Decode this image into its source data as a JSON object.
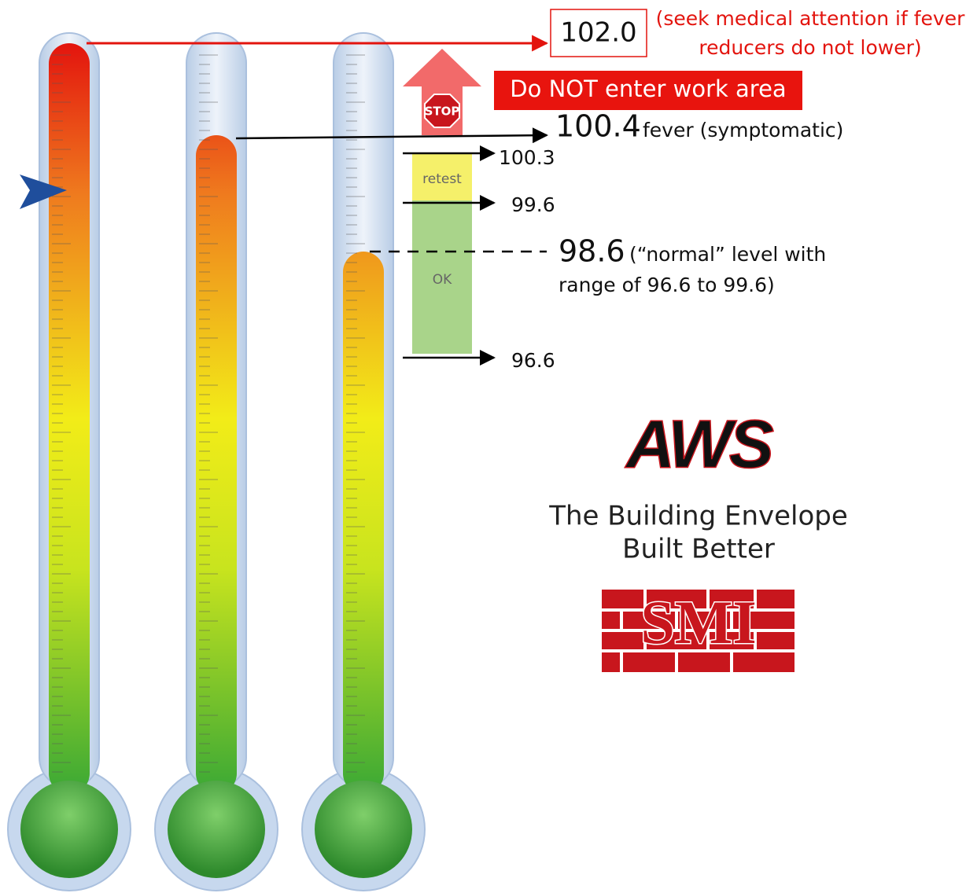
{
  "labels": {
    "high": "102.0",
    "high_note_1": "(seek medical attention if fever",
    "high_note_2": "reducers do not lower)",
    "warning": "Do NOT enter work area",
    "stop": "STOP",
    "fever": "100.4",
    "fever_note": "fever (symptomatic)",
    "retest_top": "100.3",
    "retest": "retest",
    "retest_bottom": "99.6",
    "normal": "98.6",
    "normal_note_1": "(“normal” level with",
    "normal_note_2": "range of 96.6 to 99.6)",
    "ok": "OK",
    "low": "96.6"
  },
  "logos": {
    "aws": "AWS",
    "tagline_1": "The Building Envelope",
    "tagline_2": "Built Better",
    "smi": "SMI"
  }
}
